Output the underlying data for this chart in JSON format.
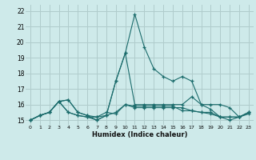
{
  "xlabel": "Humidex (Indice chaleur)",
  "xlim": [
    -0.5,
    23.5
  ],
  "ylim": [
    14.7,
    22.4
  ],
  "xticks": [
    0,
    1,
    2,
    3,
    4,
    5,
    6,
    7,
    8,
    9,
    10,
    11,
    12,
    13,
    14,
    15,
    16,
    17,
    18,
    19,
    20,
    21,
    22,
    23
  ],
  "yticks": [
    15,
    16,
    17,
    18,
    19,
    20,
    21,
    22
  ],
  "bg_color": "#ceeaea",
  "grid_color": "#b0cccc",
  "line_color": "#1a6b6b",
  "lines": [
    [
      15.0,
      15.3,
      15.5,
      16.2,
      16.3,
      15.5,
      15.3,
      15.0,
      15.3,
      17.5,
      19.3,
      16.0,
      16.0,
      16.0,
      16.0,
      16.0,
      16.0,
      16.5,
      16.0,
      16.0,
      16.0,
      15.8,
      15.2,
      15.5
    ],
    [
      15.0,
      15.3,
      15.5,
      16.2,
      16.3,
      15.5,
      15.3,
      15.2,
      15.3,
      17.5,
      19.3,
      21.8,
      19.7,
      18.3,
      17.8,
      17.5,
      17.8,
      17.5,
      16.0,
      15.7,
      15.2,
      15.2,
      15.2,
      15.5
    ],
    [
      15.0,
      15.3,
      15.5,
      16.2,
      15.5,
      15.3,
      15.2,
      15.0,
      15.3,
      15.5,
      16.0,
      15.8,
      15.8,
      15.8,
      15.8,
      15.8,
      15.8,
      15.6,
      15.5,
      15.4,
      15.2,
      15.0,
      15.2,
      15.4
    ],
    [
      15.0,
      15.3,
      15.5,
      16.2,
      15.5,
      15.3,
      15.2,
      15.2,
      15.5,
      15.4,
      16.0,
      15.9,
      15.9,
      15.9,
      15.9,
      15.9,
      15.6,
      15.6,
      15.5,
      15.5,
      15.2,
      15.2,
      15.2,
      15.5
    ]
  ]
}
